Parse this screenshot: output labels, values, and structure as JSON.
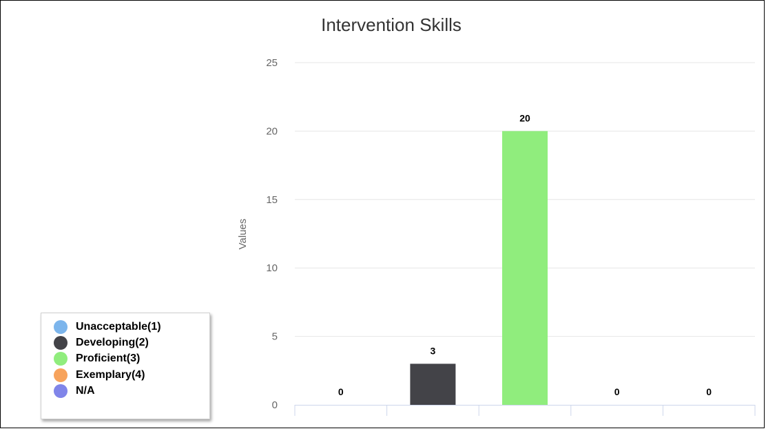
{
  "chart_data": {
    "type": "bar",
    "title": "Intervention Skills",
    "ylabel": "Values",
    "xlabel": "",
    "ylim": [
      0,
      25
    ],
    "yticks": [
      0,
      5,
      10,
      15,
      20,
      25
    ],
    "categories": [
      "Unacceptable(1)",
      "Developing(2)",
      "Proficient(3)",
      "Exemplary(4)",
      "N/A"
    ],
    "values": [
      0,
      3,
      20,
      0,
      0
    ],
    "colors": [
      "#7cb5ec",
      "#434348",
      "#90ed7d",
      "#f7a35c",
      "#8085e9"
    ],
    "data_labels": [
      "0",
      "3",
      "20",
      "0",
      "0"
    ],
    "grid": true,
    "legend_position": "bottom-left"
  }
}
